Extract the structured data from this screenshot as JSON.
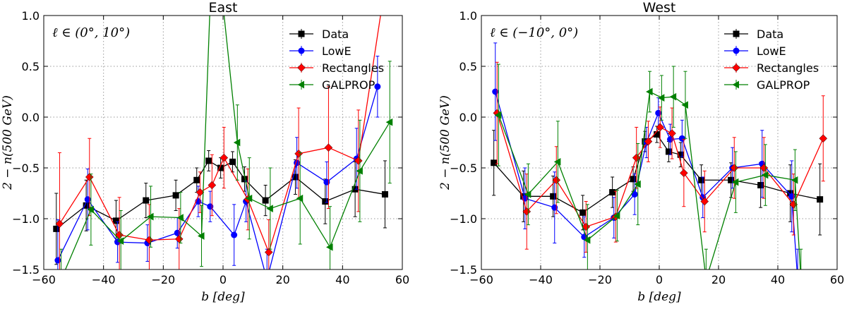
{
  "chart_data": [
    {
      "type": "line",
      "title": "East",
      "annotation": "ℓ ∈ (0°, 10°)",
      "xlabel": "b [deg]",
      "ylabel": "2 − n(500 GeV)",
      "xlim": [
        -60,
        60
      ],
      "ylim": [
        -1.5,
        1.0
      ],
      "xticks": [
        -60,
        -40,
        -20,
        0,
        20,
        40,
        60
      ],
      "xtick_labels": [
        "−60",
        "−40",
        "−20",
        "0",
        "20",
        "40",
        "60"
      ],
      "yticks": [
        -1.5,
        -1.0,
        -0.5,
        0.0,
        0.5,
        1.0
      ],
      "ytick_labels": [
        "−1.5",
        "−1.0",
        "−0.5",
        "0.0",
        "0.5",
        "1.0"
      ],
      "grid": true,
      "legend_position": "top-right",
      "series": [
        {
          "name": "Data",
          "color": "#000000",
          "marker": "square",
          "x": [
            -55,
            -45,
            -35,
            -25,
            -15,
            -8,
            -4,
            0,
            4,
            8,
            15,
            25,
            35,
            45,
            55
          ],
          "y": [
            -1.1,
            -0.87,
            -1.02,
            -0.82,
            -0.77,
            -0.62,
            -0.43,
            -0.5,
            -0.44,
            -0.61,
            -0.82,
            -0.59,
            -0.83,
            -0.71,
            -0.76
          ],
          "err": [
            0.35,
            0.25,
            0.2,
            0.17,
            0.15,
            0.12,
            0.1,
            0.1,
            0.1,
            0.12,
            0.15,
            0.17,
            0.22,
            0.27,
            0.33
          ]
        },
        {
          "name": "LowE",
          "color": "#0000ff",
          "marker": "circle",
          "x": [
            -55,
            -45,
            -35,
            -25,
            -15,
            -8,
            -4,
            4,
            8,
            15,
            25,
            35,
            45,
            52
          ],
          "y": [
            -1.41,
            -0.81,
            -1.23,
            -1.24,
            -1.14,
            -0.83,
            -0.88,
            -1.16,
            -0.83,
            -1.6,
            -0.45,
            -0.64,
            -0.41,
            0.3
          ],
          "err": [
            0.4,
            0.3,
            0.2,
            0.18,
            0.15,
            0.15,
            0.15,
            0.3,
            0.2,
            0.3,
            0.25,
            0.2,
            0.3,
            0.3
          ]
        },
        {
          "name": "Rectangles",
          "color": "#ff0000",
          "marker": "diamond",
          "x": [
            -55,
            -45,
            -35,
            -25,
            -15,
            -8,
            -4,
            0,
            8,
            15,
            25,
            35,
            45,
            55
          ],
          "y": [
            -1.05,
            -0.59,
            -1.16,
            -1.21,
            -1.2,
            -0.74,
            -0.67,
            -0.4,
            -0.81,
            -1.33,
            -0.36,
            -0.3,
            -0.43,
            1.5
          ],
          "err": [
            0.7,
            0.38,
            0.37,
            0.35,
            0.3,
            0.2,
            0.3,
            0.3,
            0.3,
            0.32,
            0.45,
            0.6,
            0.5,
            0.4
          ]
        },
        {
          "name": "GALPROP",
          "color": "#008000",
          "marker": "triangle-left",
          "x": [
            -55,
            -45,
            -35,
            -25,
            -15,
            -8,
            -4,
            4,
            8,
            15,
            25,
            35,
            45,
            55
          ],
          "y": [
            -1.6,
            -0.91,
            -1.22,
            -0.98,
            -0.99,
            -1.17,
            2.0,
            -0.25,
            -0.8,
            -0.9,
            -0.8,
            -1.28,
            -0.53,
            -0.05
          ],
          "err": [
            0.3,
            0.35,
            0.3,
            0.3,
            0.25,
            0.3,
            0.0,
            0.37,
            0.4,
            0.4,
            0.45,
            0.4,
            0.5,
            0.6
          ]
        }
      ]
    },
    {
      "type": "line",
      "title": "West",
      "annotation": "ℓ ∈ (−10°, 0°)",
      "xlabel": "b [deg]",
      "ylabel": "2 − n(500 GeV)",
      "xlim": [
        -60,
        60
      ],
      "ylim": [
        -1.5,
        1.0
      ],
      "xticks": [
        -60,
        -40,
        -20,
        0,
        20,
        40,
        60
      ],
      "xtick_labels": [
        "−60",
        "−40",
        "−20",
        "0",
        "20",
        "40",
        "60"
      ],
      "yticks": [
        -1.5,
        -1.0,
        -0.5,
        0.0,
        0.5,
        1.0
      ],
      "ytick_labels": [
        "−1.5",
        "−1.0",
        "−0.5",
        "0.0",
        "0.5",
        "1.0"
      ],
      "grid": true,
      "legend_position": "top-right",
      "series": [
        {
          "name": "Data",
          "color": "#000000",
          "marker": "square",
          "x": [
            -55,
            -45,
            -35,
            -25,
            -15,
            -8,
            -4,
            0,
            4,
            8,
            15,
            25,
            35,
            45,
            55
          ],
          "y": [
            -0.45,
            -0.78,
            -0.78,
            -0.94,
            -0.74,
            -0.61,
            -0.24,
            -0.17,
            -0.34,
            -0.37,
            -0.62,
            -0.62,
            -0.67,
            -0.75,
            -0.81
          ],
          "err": [
            0.32,
            0.25,
            0.2,
            0.17,
            0.15,
            0.12,
            0.1,
            0.08,
            0.1,
            0.12,
            0.15,
            0.17,
            0.22,
            0.28,
            0.35
          ]
        },
        {
          "name": "LowE",
          "color": "#0000ff",
          "marker": "circle",
          "x": [
            -55,
            -45,
            -35,
            -25,
            -15,
            -8,
            -4,
            0,
            4,
            8,
            15,
            25,
            35,
            45,
            47
          ],
          "y": [
            0.25,
            -0.8,
            -0.89,
            -1.18,
            -0.99,
            -0.76,
            -0.25,
            0.04,
            -0.22,
            -0.21,
            -0.79,
            -0.5,
            -0.46,
            -0.78,
            -1.6
          ],
          "err": [
            0.48,
            0.3,
            0.35,
            0.2,
            0.2,
            0.2,
            0.15,
            0.15,
            0.15,
            0.18,
            0.2,
            0.2,
            0.33,
            0.35,
            0.3
          ]
        },
        {
          "name": "Rectangles",
          "color": "#ff0000",
          "marker": "diamond",
          "x": [
            -55,
            -45,
            -35,
            -25,
            -15,
            -8,
            -4,
            0,
            4,
            8,
            15,
            25,
            35,
            45,
            55
          ],
          "y": [
            0.04,
            -0.93,
            -0.62,
            -1.08,
            -0.98,
            -0.4,
            -0.24,
            -0.1,
            -0.16,
            -0.55,
            -0.83,
            -0.5,
            -0.5,
            -0.86,
            -0.21
          ],
          "err": [
            0.5,
            0.37,
            0.33,
            0.25,
            0.25,
            0.3,
            0.2,
            0.2,
            0.25,
            0.33,
            0.3,
            0.3,
            0.3,
            0.3,
            0.42
          ]
        },
        {
          "name": "GALPROP",
          "color": "#008000",
          "marker": "triangle-left",
          "x": [
            -55,
            -45,
            -35,
            -25,
            -15,
            -8,
            -4,
            0,
            4,
            8,
            15,
            25,
            35,
            45,
            47
          ],
          "y": [
            0.02,
            -0.76,
            -0.44,
            -1.21,
            -0.97,
            -0.66,
            0.25,
            0.19,
            0.2,
            0.12,
            -1.6,
            -0.64,
            -0.57,
            -0.62,
            -1.6
          ],
          "err": [
            0.5,
            0.3,
            0.4,
            0.35,
            0.25,
            0.4,
            0.2,
            0.22,
            0.3,
            0.33,
            0.3,
            0.3,
            0.3,
            0.3,
            0.3
          ]
        }
      ]
    }
  ]
}
